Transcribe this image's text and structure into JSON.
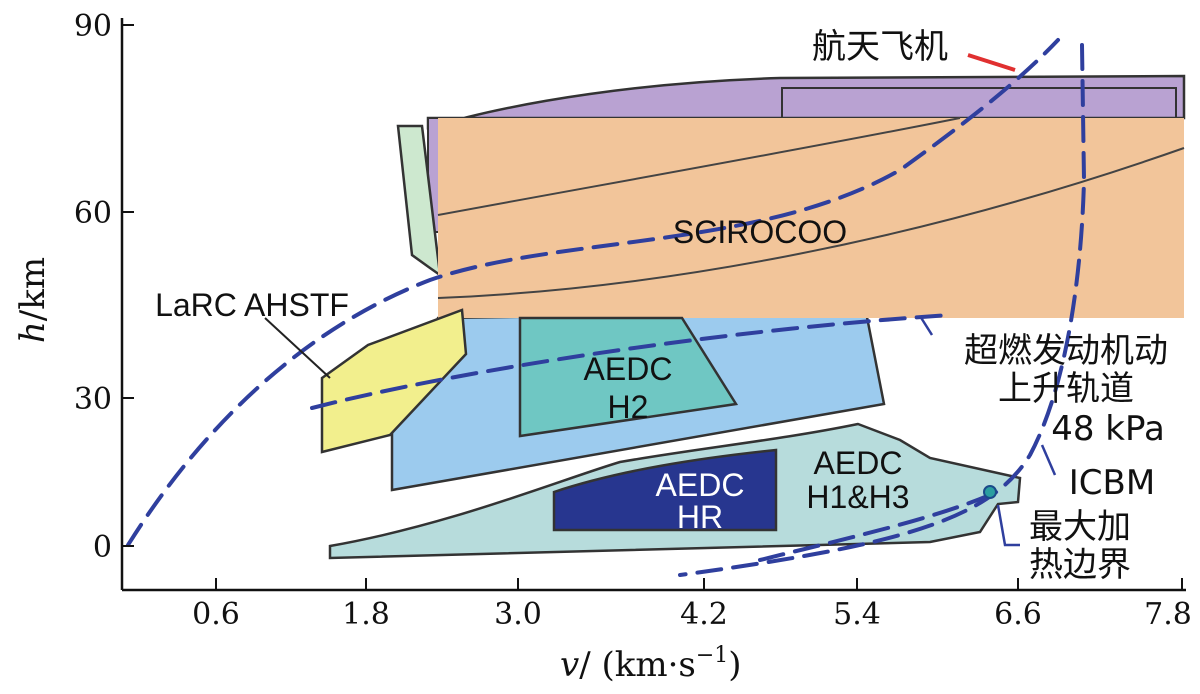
{
  "chart_data": {
    "type": "diagram",
    "xlabel_prefix": "v",
    "xlabel_units": "/ (km·s",
    "xlabel_exp": "−1",
    "xlabel_close": ")",
    "ylabel_prefix": "h",
    "ylabel_units": "/km",
    "x_range": [
      0.0,
      7.8
    ],
    "y_range": [
      -5,
      90
    ],
    "x_ticks": [
      "0.6",
      "1.8",
      "3.0",
      "4.2",
      "5.4",
      "6.6",
      "7.8"
    ],
    "y_ticks": [
      "90",
      "60",
      "30",
      "0"
    ],
    "regions": {
      "scirocoo": "SCIROCOO",
      "larc": "LaRC AHSTF",
      "aedc_h2_line1": "AEDC",
      "aedc_h2_line2": "H2",
      "aedc_hr_line1": "AEDC",
      "aedc_hr_line2": "HR",
      "aedc_h1h3_line1": "AEDC",
      "aedc_h1h3_line2": "H1&H3"
    },
    "annotations": {
      "space_shuttle": "航天飞机",
      "scramjet_line1": "超燃发动机动",
      "scramjet_line2": "上升轨道",
      "scramjet_line3": "48 kPa",
      "icbm": "ICBM",
      "max_heat_line1": "最大加",
      "max_heat_line2": "热边界"
    },
    "colors": {
      "purple": "#b9a2d2",
      "orange": "#f2c59a",
      "light_green": "#cde8cf",
      "blue": "#9ccbee",
      "teal": "#6fc7c3",
      "yellow": "#f2ef8d",
      "light_teal": "#b7dcdc",
      "navy": "#27368f",
      "dashed_line": "#2f3f9e",
      "shuttle_arrow": "#e03030"
    }
  }
}
